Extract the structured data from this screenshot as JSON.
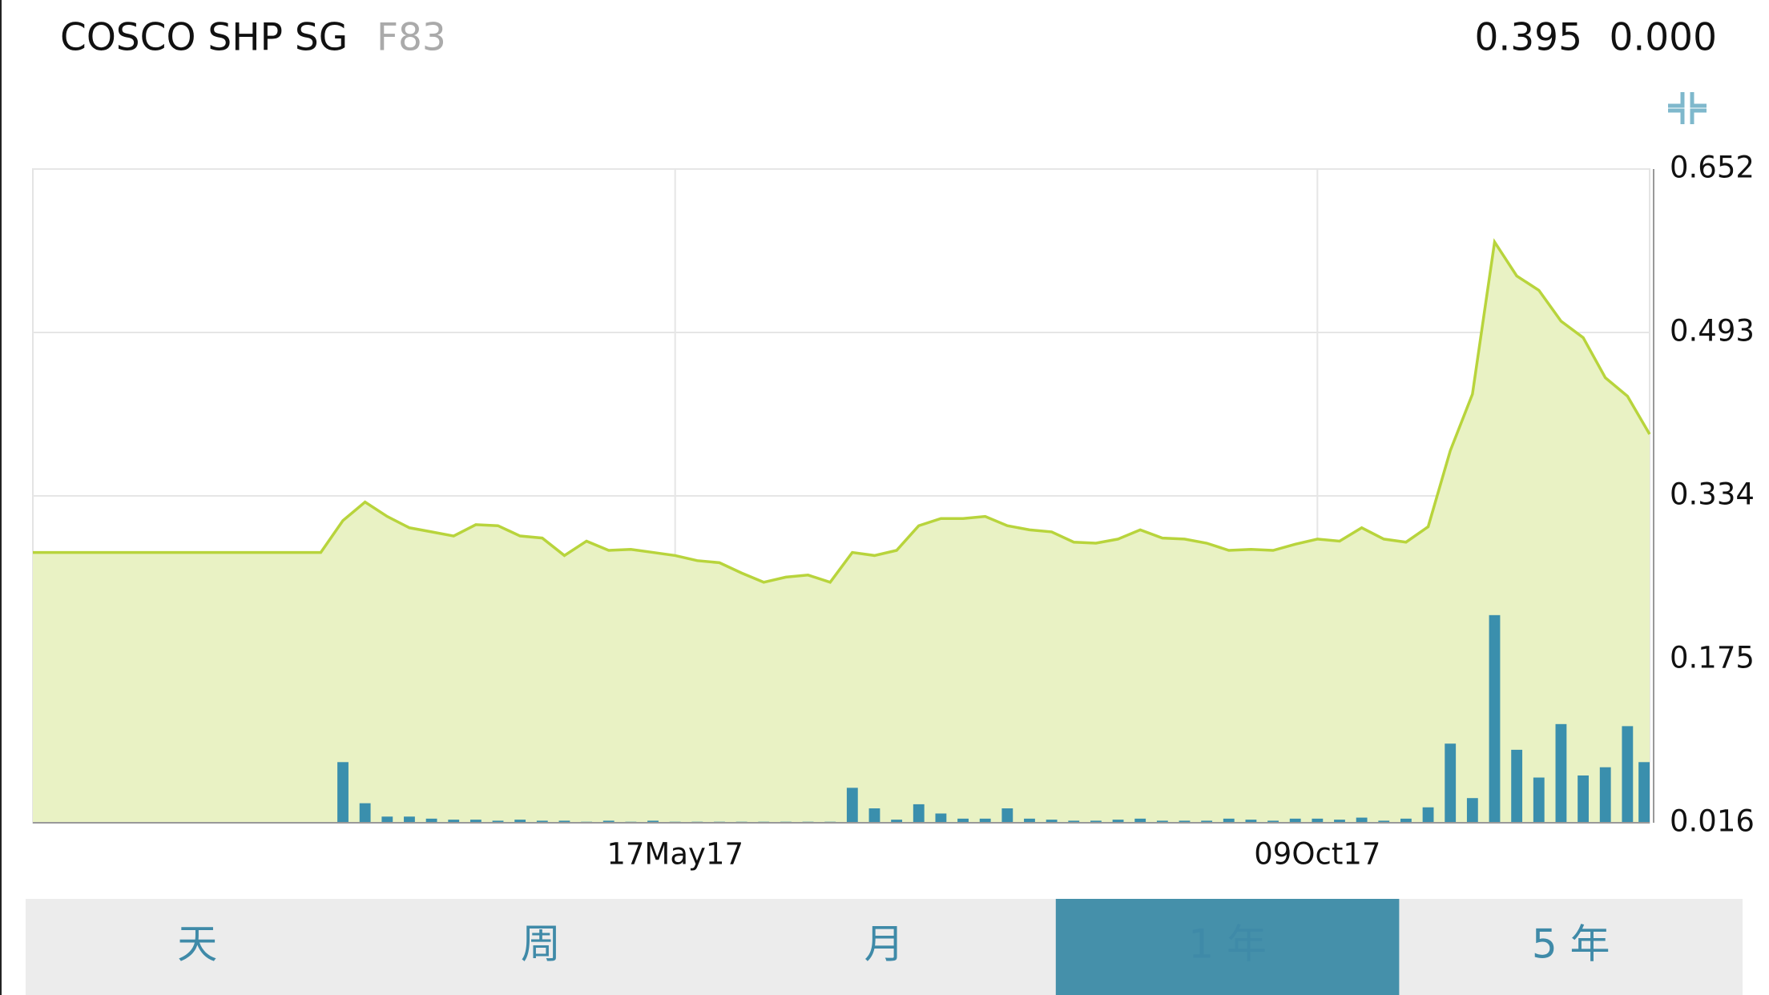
{
  "header": {
    "name": "COSCO SHP SG",
    "code": "F83",
    "price": "0.395",
    "change": "0.000"
  },
  "tabs": [
    "天",
    "周",
    "月",
    "1 年",
    "5 年"
  ],
  "selected_tab": 3,
  "chart_data": {
    "type": "line",
    "categories": [
      null,
      null,
      null,
      null,
      null,
      null,
      null,
      null,
      null,
      null,
      null,
      null,
      null,
      null,
      null,
      null,
      null,
      null,
      null,
      null,
      null,
      null,
      null,
      null,
      null,
      null,
      null,
      null,
      null,
      "17May17",
      null,
      null,
      null,
      null,
      null,
      null,
      null,
      null,
      null,
      null,
      null,
      null,
      null,
      null,
      null,
      null,
      null,
      null,
      null,
      null,
      null,
      null,
      null,
      null,
      null,
      null,
      null,
      null,
      "09Oct17",
      null,
      null,
      null,
      null,
      null,
      null,
      null,
      null,
      null,
      null,
      null,
      null,
      null,
      null,
      null
    ],
    "series": [
      {
        "type": "line",
        "color": "#b8d43c",
        "fill_color": "#e9f2c4",
        "values": [
          0.279,
          0.279,
          0.279,
          0.279,
          0.279,
          0.279,
          0.279,
          0.279,
          0.279,
          0.279,
          0.279,
          0.279,
          0.279,
          0.279,
          0.31,
          0.328,
          0.314,
          0.303,
          0.299,
          0.295,
          0.306,
          0.305,
          0.295,
          0.293,
          0.276,
          0.29,
          0.281,
          0.282,
          0.279,
          0.276,
          0.271,
          0.269,
          0.259,
          0.25,
          0.255,
          0.257,
          0.25,
          0.279,
          0.276,
          0.281,
          0.305,
          0.312,
          0.312,
          0.314,
          0.305,
          0.301,
          0.299,
          0.289,
          0.288,
          0.292,
          0.301,
          0.293,
          0.292,
          0.288,
          0.281,
          0.282,
          0.281,
          0.287,
          0.292,
          0.29,
          0.303,
          0.292,
          0.289,
          0.304,
          0.378,
          0.433,
          0.581,
          0.548,
          0.534,
          0.504,
          0.488,
          0.449,
          0.431,
          0.394
        ]
      },
      {
        "type": "bar",
        "color": "#3a8fad",
        "values": [
          0.016,
          0.016,
          0.016,
          0.016,
          0.016,
          0.016,
          0.016,
          0.016,
          0.016,
          0.016,
          0.016,
          0.016,
          0.016,
          0.016,
          0.075,
          0.035,
          0.022,
          0.022,
          0.02,
          0.019,
          0.019,
          0.018,
          0.019,
          0.018,
          0.018,
          0.017,
          0.018,
          0.017,
          0.018,
          0.017,
          0.017,
          0.017,
          0.017,
          0.017,
          0.017,
          0.017,
          0.017,
          0.05,
          0.03,
          0.019,
          0.034,
          0.025,
          0.02,
          0.02,
          0.03,
          0.02,
          0.019,
          0.018,
          0.018,
          0.019,
          0.02,
          0.018,
          0.018,
          0.018,
          0.02,
          0.019,
          0.018,
          0.02,
          0.02,
          0.019,
          0.021,
          0.018,
          0.02,
          0.031,
          0.093,
          0.04,
          0.218,
          0.087,
          0.06,
          0.112,
          0.062,
          0.07,
          0.11,
          0.075
        ]
      }
    ],
    "ylim": [
      0.016,
      0.652
    ],
    "yticks": [
      0.016,
      0.175,
      0.334,
      0.493,
      0.652
    ],
    "grid": true
  }
}
